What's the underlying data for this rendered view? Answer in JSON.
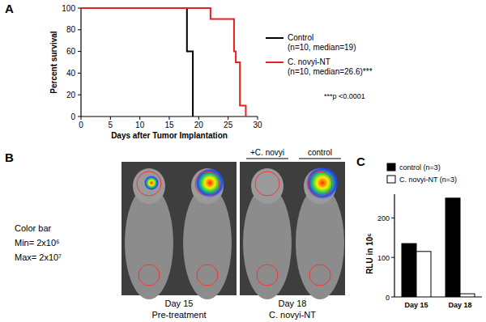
{
  "chart_data": [
    {
      "panel": "A",
      "type": "step",
      "xlabel": "Days after Tumor Implantation",
      "ylabel": "Percent survival",
      "xlim": [
        0,
        30
      ],
      "xticks": [
        0,
        5,
        10,
        15,
        20,
        25,
        30
      ],
      "ylim": [
        0,
        100
      ],
      "yticks": [
        0,
        20,
        40,
        60,
        80,
        100
      ],
      "series": [
        {
          "name": "Control",
          "detail": "(n=10, median=19)",
          "color": "#000000",
          "x": [
            0,
            18,
            19
          ],
          "values": [
            100,
            60,
            0
          ]
        },
        {
          "name": "C. novyi-NT",
          "detail": "(n=10, median=26.6)***",
          "color": "#e8201c",
          "x": [
            0,
            22,
            26,
            26.3,
            27,
            28
          ],
          "values": [
            100,
            90,
            60,
            50,
            10,
            0
          ]
        }
      ],
      "annotations": [
        "***p <0.0001"
      ]
    },
    {
      "panel": "C",
      "type": "bar",
      "ylabel": "RLU in 10⁶",
      "categories": [
        "Day 15",
        "Day 18"
      ],
      "ylim": [
        0,
        260
      ],
      "yticks": [
        0,
        100,
        200
      ],
      "legend": "top",
      "series": [
        {
          "name": "control (n=3)",
          "color": "#000000",
          "values": [
            135,
            250
          ]
        },
        {
          "name": "C. novyi-NT (n=3)",
          "color": "#ffffff",
          "values": [
            115,
            8
          ]
        }
      ]
    }
  ],
  "image_panel": {
    "panel": "B",
    "color_bar": {
      "title": "Color bar",
      "min_label": "Min= 2x10⁶",
      "max_label": "Max= 2x10⁷"
    },
    "groups": [
      "+C. novyi",
      "control"
    ],
    "captions": [
      {
        "day": "Day 15",
        "note": "Pre-treatment"
      },
      {
        "day": "Day 18",
        "note": "C. novyi-NT"
      }
    ]
  }
}
